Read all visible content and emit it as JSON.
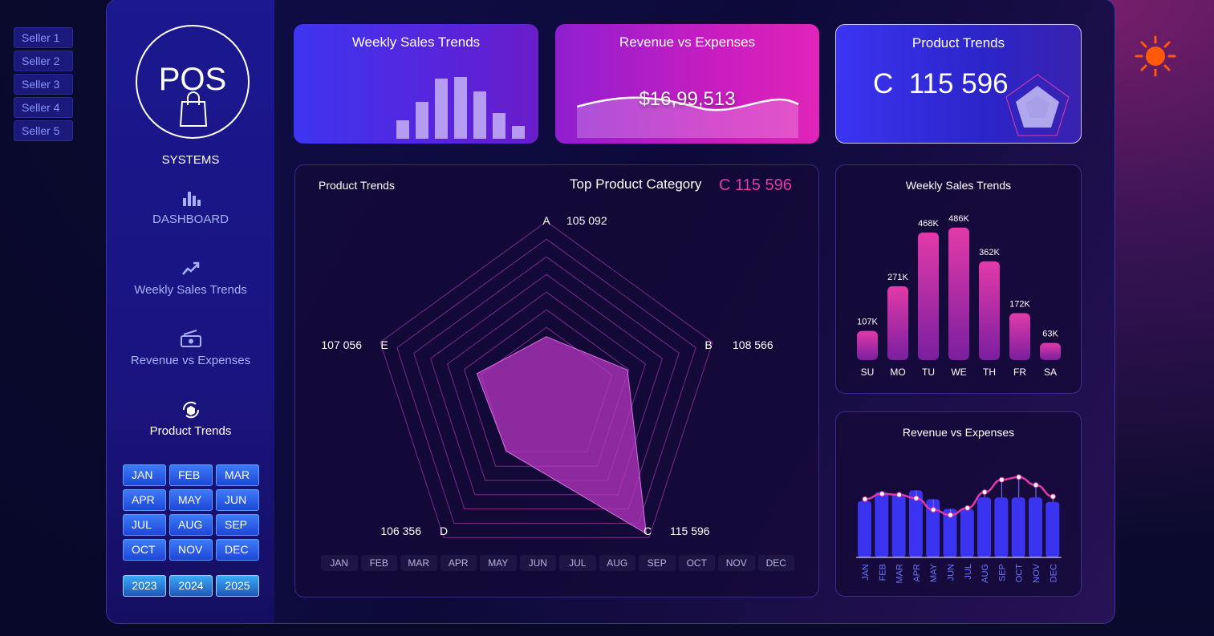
{
  "sellers": [
    "Seller 1",
    "Seller 2",
    "Seller 3",
    "Seller 4",
    "Seller 5"
  ],
  "logo": {
    "title": "POS",
    "subtitle": "SYSTEMS"
  },
  "nav": [
    {
      "label": "DASHBOARD",
      "icon": "bar-chart-icon"
    },
    {
      "label": "Weekly Sales Trends",
      "icon": "trend-up-icon"
    },
    {
      "label": "Revenue vs Expenses",
      "icon": "money-icon"
    },
    {
      "label": "Product Trends",
      "icon": "box-cycle-icon"
    }
  ],
  "months": [
    "JAN",
    "FEB",
    "MAR",
    "APR",
    "MAY",
    "JUN",
    "JUL",
    "AUG",
    "SEP",
    "OCT",
    "NOV",
    "DEC"
  ],
  "years": [
    "2023",
    "2024",
    "2025"
  ],
  "cards": {
    "weekly": {
      "title": "Weekly Sales Trends"
    },
    "revenue": {
      "title": "Revenue vs Expenses",
      "value": "$16,99,513"
    },
    "product": {
      "title": "Product Trends",
      "value": "C  115 596"
    }
  },
  "radar_panel": {
    "title": "Product Trends",
    "top_label": "Top Product Category",
    "top_value": "C 115 596"
  },
  "weekly_panel": {
    "title": "Weekly Sales Trends"
  },
  "revexp_panel": {
    "title": "Revenue vs Expenses"
  },
  "colors": {
    "accent_pink": "#e23aa8",
    "accent_blue": "#3a34f0",
    "sun": "#ff5a0a"
  },
  "chart_data": [
    {
      "type": "radar",
      "categories": [
        "A",
        "B",
        "C",
        "D",
        "E"
      ],
      "values": [
        105092,
        108566,
        115596,
        106356,
        107056
      ],
      "labels": [
        "105 092",
        "108 566",
        "115 596",
        "106 356",
        "107 056"
      ]
    },
    {
      "type": "bar",
      "categories": [
        "SU",
        "MO",
        "TU",
        "WE",
        "TH",
        "FR",
        "SA"
      ],
      "values": [
        107,
        271,
        468,
        486,
        362,
        172,
        63
      ],
      "labels": [
        "107K",
        "271K",
        "468K",
        "486K",
        "362K",
        "172K",
        "63K"
      ]
    },
    {
      "type": "bar+line",
      "categories": [
        "JAN",
        "FEB",
        "MAR",
        "APR",
        "MAY",
        "JUN",
        "JUL",
        "AUG",
        "SEP",
        "OCT",
        "NOV",
        "DEC"
      ],
      "series": [
        {
          "values": [
            64,
            74,
            72,
            76,
            66,
            55,
            55,
            68,
            68,
            68,
            68,
            63
          ]
        },
        {
          "values": [
            66,
            72,
            71,
            67,
            54,
            48,
            56,
            74,
            88,
            91,
            82,
            69
          ]
        }
      ]
    }
  ]
}
